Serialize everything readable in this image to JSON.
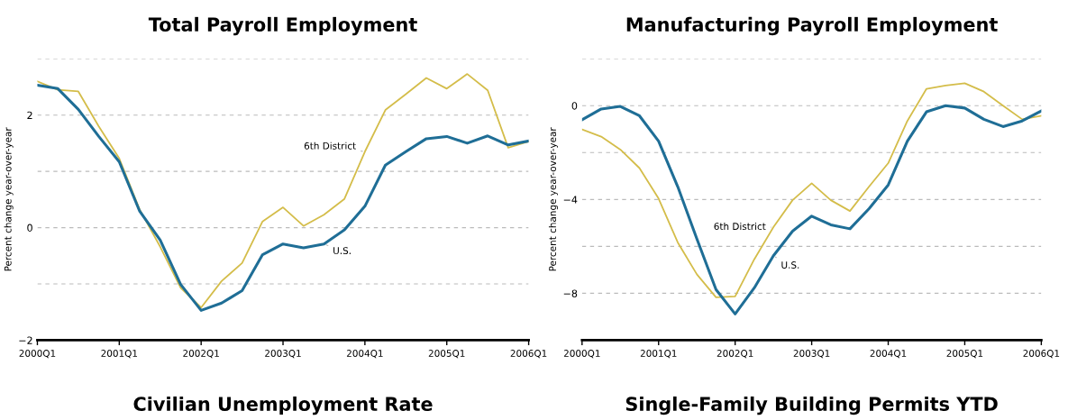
{
  "chart_data": [
    {
      "type": "line",
      "title": "Total Payroll Employment",
      "ylabel": "Percent change year-over-year",
      "categories": [
        "2000Q1",
        null,
        null,
        null,
        "2001Q1",
        null,
        null,
        null,
        "2002Q1",
        null,
        null,
        null,
        "2003Q1",
        null,
        null,
        null,
        "2004Q1",
        null,
        null,
        null,
        "2005Q1",
        null,
        null,
        null,
        "2006Q1"
      ],
      "series": [
        {
          "name": "6th District",
          "color": "#d4bd4a",
          "values": [
            2.6,
            2.45,
            2.42,
            1.8,
            1.23,
            0.32,
            -0.34,
            -1.07,
            -1.42,
            -0.95,
            -0.63,
            0.11,
            0.36,
            0.03,
            0.23,
            0.51,
            1.35,
            2.09,
            2.37,
            2.66,
            2.47,
            2.73,
            2.44,
            1.42,
            1.53
          ]
        },
        {
          "name": "U.S.",
          "color": "#1f6e96",
          "values": [
            2.53,
            2.47,
            2.1,
            1.62,
            1.17,
            0.29,
            -0.22,
            -1.01,
            -1.47,
            -1.34,
            -1.12,
            -0.48,
            -0.29,
            -0.36,
            -0.29,
            -0.04,
            0.38,
            1.11,
            1.35,
            1.58,
            1.62,
            1.5,
            1.63,
            1.47,
            1.54
          ]
        }
      ],
      "ylim": [
        -2,
        3
      ],
      "yticks": [
        -2,
        {
          "value": -1,
          "label": null
        },
        0,
        {
          "value": 1,
          "label": null
        },
        2,
        {
          "value": 3,
          "label": null
        }
      ],
      "grid": "y",
      "legend": false,
      "line_style": "solid",
      "marker": "none",
      "annotations": [
        "Civilian Unemployment Rate"
      ]
    },
    {
      "type": "line",
      "title": "Manufacturing Payroll Employment",
      "ylabel": "Percent change year-over-year",
      "categories": [
        "2000Q1",
        null,
        null,
        null,
        "2001Q1",
        null,
        null,
        null,
        "2002Q1",
        null,
        null,
        null,
        "2003Q1",
        null,
        null,
        null,
        "2004Q1",
        null,
        null,
        null,
        "2005Q1",
        null,
        null,
        null,
        "2006Q1"
      ],
      "series": [
        {
          "name": "6th District",
          "color": "#d4bd4a",
          "values": [
            -1.01,
            -1.32,
            -1.87,
            -2.66,
            -3.96,
            -5.83,
            -7.19,
            -8.17,
            -8.13,
            -6.55,
            -5.18,
            -4.03,
            -3.31,
            -4.03,
            -4.49,
            -3.45,
            -2.45,
            -0.65,
            0.72,
            0.86,
            0.96,
            0.6,
            0.0,
            -0.58,
            -0.43
          ]
        },
        {
          "name": "U.S.",
          "color": "#1f6e96",
          "values": [
            -0.6,
            -0.14,
            -0.03,
            -0.43,
            -1.51,
            -3.45,
            -5.68,
            -7.84,
            -8.88,
            -7.77,
            -6.4,
            -5.35,
            -4.71,
            -5.08,
            -5.25,
            -4.39,
            -3.38,
            -1.51,
            -0.26,
            0.0,
            -0.1,
            -0.58,
            -0.89,
            -0.65,
            -0.22
          ]
        }
      ],
      "ylim": [
        -10,
        2
      ],
      "yticks": [
        {
          "value": -10,
          "label": null
        },
        -8,
        {
          "value": -6,
          "label": null
        },
        -4,
        {
          "value": -2,
          "label": null
        },
        0,
        {
          "value": 2,
          "label": null
        }
      ],
      "grid": "y",
      "legend": false,
      "line_style": "solid",
      "marker": "none",
      "annotations": [
        "Single-Family Building Permits YTD"
      ]
    }
  ]
}
